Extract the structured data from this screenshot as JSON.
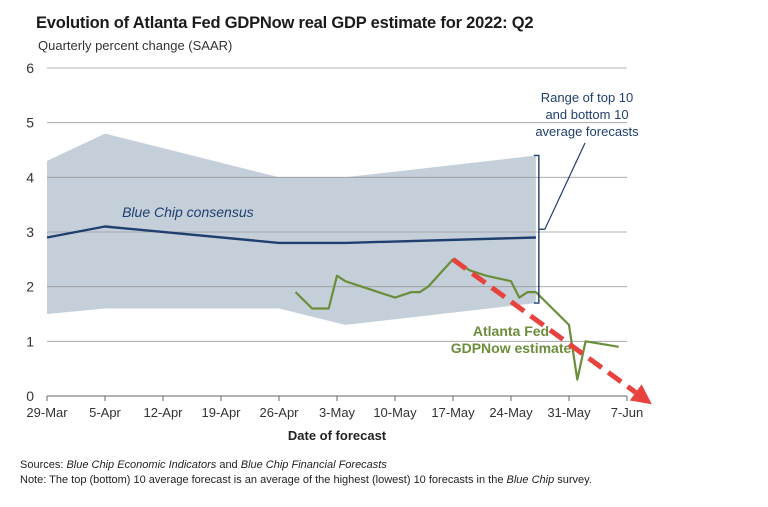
{
  "title": "Evolution of Atlanta Fed GDPNow real GDP estimate for 2022: Q2",
  "subtitle": "Quarterly percent change (SAAR)",
  "footnotes": {
    "sources_prefix": "Sources: ",
    "sources_source1": "Blue Chip Economic Indicators",
    "sources_and": " and ",
    "sources_source2": "Blue Chip Financial Forecasts",
    "note_prefix": "Note: The top (bottom) 10 average forecast is an average of the highest (lowest) 10 forecasts in the ",
    "note_italic": "Blue Chip",
    "note_suffix": " survey."
  },
  "chart_data": {
    "type": "line",
    "xlabel": "Date of forecast",
    "ylabel": "",
    "ylim": [
      0,
      6
    ],
    "yticks": [
      0,
      1,
      2,
      3,
      4,
      5,
      6
    ],
    "xlim": [
      "2022-03-29",
      "2022-06-07"
    ],
    "xticks": [
      "29-Mar",
      "5-Apr",
      "12-Apr",
      "19-Apr",
      "26-Apr",
      "3-May",
      "10-May",
      "17-May",
      "24-May",
      "31-May",
      "7-Jun"
    ],
    "xtick_dates": [
      "2022-03-29",
      "2022-04-05",
      "2022-04-12",
      "2022-04-19",
      "2022-04-26",
      "2022-05-03",
      "2022-05-10",
      "2022-05-17",
      "2022-05-24",
      "2022-05-31",
      "2022-06-07"
    ],
    "grid": true,
    "range_band": {
      "label": "Range of top 10 and bottom 10 average forecasts",
      "label_lines": [
        "Range of top 10",
        "and bottom 10",
        "average forecasts"
      ],
      "color": "#c4cfd9",
      "x": [
        "2022-03-29",
        "2022-04-05",
        "2022-04-26",
        "2022-05-04",
        "2022-05-27"
      ],
      "upper": [
        4.3,
        4.8,
        4.0,
        4.0,
        4.4
      ],
      "lower": [
        1.5,
        1.6,
        1.6,
        1.3,
        1.7
      ]
    },
    "series": [
      {
        "name": "Blue Chip consensus",
        "color": "#1f3f6e",
        "x": [
          "2022-03-29",
          "2022-04-05",
          "2022-04-26",
          "2022-05-04",
          "2022-05-27"
        ],
        "values": [
          2.9,
          3.1,
          2.8,
          2.8,
          2.9
        ]
      },
      {
        "name": "Atlanta Fed GDPNow estimate",
        "label_lines": [
          "Atlanta Fed",
          "GDPNow estimate"
        ],
        "color": "#6b8e3a",
        "x": [
          "2022-04-28",
          "2022-04-30",
          "2022-05-02",
          "2022-05-03",
          "2022-05-04",
          "2022-05-06",
          "2022-05-10",
          "2022-05-12",
          "2022-05-13",
          "2022-05-14",
          "2022-05-17",
          "2022-05-19",
          "2022-05-21",
          "2022-05-24",
          "2022-05-25",
          "2022-05-26",
          "2022-05-27",
          "2022-05-31",
          "2022-06-01",
          "2022-06-02",
          "2022-06-06"
        ],
        "values": [
          1.9,
          1.6,
          1.6,
          2.2,
          2.1,
          2.0,
          1.8,
          1.9,
          1.9,
          2.0,
          2.5,
          2.3,
          2.2,
          2.1,
          1.8,
          1.9,
          1.9,
          1.3,
          0.3,
          1.0,
          0.9
        ]
      }
    ],
    "annotation_arrow": {
      "style": "dashed",
      "color": "#e8423f",
      "from": {
        "x": "2022-05-17",
        "y": 2.5
      },
      "to": {
        "x": "2022-06-10",
        "y": -0.15
      }
    }
  }
}
